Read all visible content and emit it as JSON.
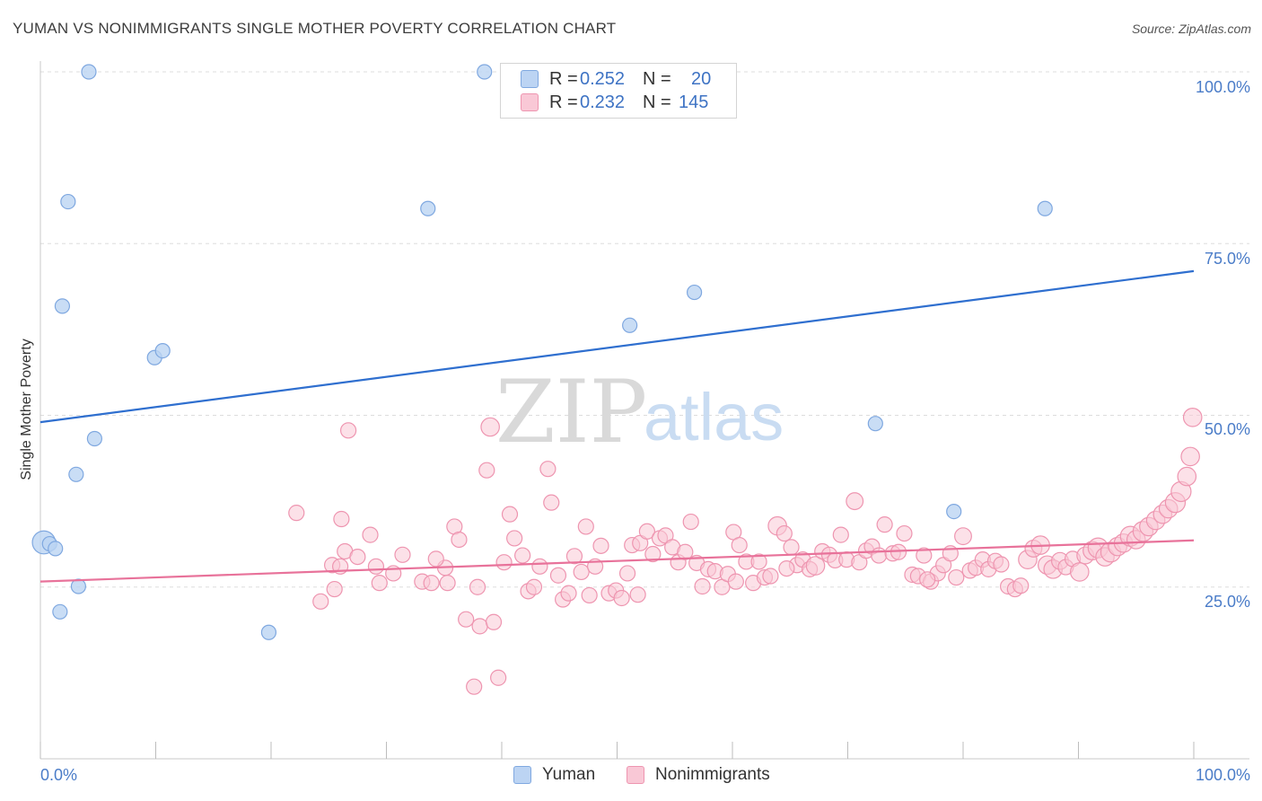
{
  "title": "YUMAN VS NONIMMIGRANTS SINGLE MOTHER POVERTY CORRELATION CHART",
  "source": "Source: ZipAtlas.com",
  "watermark": {
    "zip": "ZIP",
    "atlas": "atlas"
  },
  "legend": {
    "rows": [
      {
        "r_label": "R =",
        "r_value": "0.252",
        "n_label": "N =",
        "n_value": "20"
      },
      {
        "r_label": "R =",
        "r_value": "0.232",
        "n_label": "N =",
        "n_value": "145"
      }
    ]
  },
  "bottom_legend": {
    "series1": "Yuman",
    "series2": "Nonimmigrants"
  },
  "colors": {
    "yuman_fill": "#bcd4f3",
    "yuman_stroke": "#7fa8e0",
    "yuman_line": "#2f6fcf",
    "nonimm_fill": "#f9c8d6",
    "nonimm_stroke": "#ee95b0",
    "nonimm_line": "#e8729a",
    "tick_text": "#4a7cc8",
    "grid": "#dddddd"
  },
  "chart_data": {
    "type": "scatter",
    "title": "YUMAN VS NONIMMIGRANTS SINGLE MOTHER POVERTY CORRELATION CHART",
    "xlabel": "",
    "ylabel": "Single Mother Poverty",
    "xlim": [
      0,
      100
    ],
    "ylim": [
      0,
      102
    ],
    "x_ticks": [
      "0.0%",
      "100.0%"
    ],
    "y_ticks": [
      {
        "value": 25,
        "label": "25.0%"
      },
      {
        "value": 50,
        "label": "50.0%"
      },
      {
        "value": 75,
        "label": "75.0%"
      },
      {
        "value": 100,
        "label": "100.0%"
      }
    ],
    "grid": true,
    "legend_position": "top-center",
    "series": [
      {
        "name": "Yuman",
        "r": 0.252,
        "n": 20,
        "trend": {
          "x": [
            0,
            100
          ],
          "y": [
            49.0,
            71.0
          ]
        },
        "points": [
          [
            0.3,
            31.5,
            1.6
          ],
          [
            0.8,
            31.3,
            1
          ],
          [
            1.3,
            30.6,
            1
          ],
          [
            1.7,
            21.4,
            1
          ],
          [
            1.9,
            65.9,
            1
          ],
          [
            2.4,
            81.1,
            1
          ],
          [
            3.1,
            41.4,
            1
          ],
          [
            3.3,
            25.1,
            1
          ],
          [
            4.2,
            100.0,
            1
          ],
          [
            4.7,
            46.6,
            1
          ],
          [
            9.9,
            58.4,
            1
          ],
          [
            10.6,
            59.4,
            1
          ],
          [
            19.8,
            18.4,
            1
          ],
          [
            33.6,
            80.1,
            1
          ],
          [
            38.5,
            100.0,
            1
          ],
          [
            51.1,
            63.1,
            1
          ],
          [
            56.7,
            67.9,
            1
          ],
          [
            72.4,
            48.8,
            1
          ],
          [
            79.2,
            36.0,
            1
          ],
          [
            87.1,
            80.1,
            1
          ]
        ]
      },
      {
        "name": "Nonimmigrants",
        "r": 0.232,
        "n": 145,
        "trend": {
          "x": [
            0,
            100
          ],
          "y": [
            25.8,
            31.8
          ]
        },
        "points": [
          [
            22.2,
            35.8,
            1
          ],
          [
            24.3,
            22.9,
            1
          ],
          [
            25.3,
            28.2,
            1
          ],
          [
            25.5,
            24.7,
            1
          ],
          [
            26.1,
            34.9,
            1
          ],
          [
            26.4,
            30.2,
            1
          ],
          [
            26.7,
            47.8,
            1
          ],
          [
            27.5,
            29.4,
            1
          ],
          [
            28.6,
            32.6,
            1
          ],
          [
            29.1,
            28.0,
            1
          ],
          [
            29.4,
            25.6,
            1
          ],
          [
            30.6,
            27.0,
            1
          ],
          [
            31.4,
            29.7,
            1
          ],
          [
            33.1,
            25.8,
            1
          ],
          [
            33.9,
            25.6,
            1
          ],
          [
            35.1,
            27.8,
            1
          ],
          [
            35.3,
            25.6,
            1
          ],
          [
            35.9,
            33.8,
            1
          ],
          [
            36.3,
            31.9,
            1
          ],
          [
            36.9,
            20.3,
            1
          ],
          [
            37.6,
            10.5,
            1
          ],
          [
            37.9,
            25.0,
            1
          ],
          [
            38.1,
            19.3,
            1
          ],
          [
            38.7,
            42.0,
            1
          ],
          [
            39.0,
            48.3,
            1.2
          ],
          [
            39.3,
            19.9,
            1
          ],
          [
            39.7,
            11.8,
            1
          ],
          [
            40.2,
            28.6,
            1
          ],
          [
            40.7,
            35.6,
            1
          ],
          [
            41.1,
            32.1,
            1
          ],
          [
            41.8,
            29.6,
            1
          ],
          [
            42.3,
            24.4,
            1
          ],
          [
            42.8,
            25.0,
            1
          ],
          [
            43.3,
            28.0,
            1
          ],
          [
            44.0,
            42.2,
            1
          ],
          [
            44.3,
            37.3,
            1
          ],
          [
            44.9,
            26.7,
            1
          ],
          [
            45.3,
            23.2,
            1
          ],
          [
            45.8,
            24.1,
            1
          ],
          [
            46.3,
            29.5,
            1
          ],
          [
            46.9,
            27.2,
            1
          ],
          [
            47.6,
            23.8,
            1
          ],
          [
            48.1,
            28.0,
            1
          ],
          [
            48.6,
            31.0,
            1
          ],
          [
            49.3,
            24.1,
            1
          ],
          [
            49.9,
            24.5,
            1
          ],
          [
            50.4,
            23.4,
            1
          ],
          [
            50.9,
            27.0,
            1
          ],
          [
            51.3,
            31.1,
            1
          ],
          [
            52.0,
            31.4,
            1
          ],
          [
            52.6,
            33.1,
            1
          ],
          [
            53.1,
            29.8,
            1
          ],
          [
            53.7,
            32.1,
            1
          ],
          [
            54.2,
            32.5,
            1
          ],
          [
            54.8,
            30.8,
            1
          ],
          [
            55.3,
            28.6,
            1
          ],
          [
            55.9,
            30.1,
            1
          ],
          [
            56.4,
            34.5,
            1
          ],
          [
            56.9,
            28.5,
            1
          ],
          [
            57.4,
            25.1,
            1
          ],
          [
            57.9,
            27.6,
            1
          ],
          [
            58.5,
            27.3,
            1
          ],
          [
            59.1,
            25.0,
            1
          ],
          [
            59.6,
            26.9,
            1
          ],
          [
            60.1,
            33.0,
            1
          ],
          [
            60.6,
            31.1,
            1
          ],
          [
            61.2,
            28.7,
            1
          ],
          [
            61.8,
            25.6,
            1
          ],
          [
            62.3,
            28.7,
            1
          ],
          [
            62.8,
            26.4,
            1
          ],
          [
            63.3,
            26.6,
            1
          ],
          [
            63.9,
            33.9,
            1.2
          ],
          [
            64.5,
            32.8,
            1
          ],
          [
            65.1,
            30.8,
            1
          ],
          [
            65.6,
            28.2,
            1
          ],
          [
            66.1,
            29.0,
            1
          ],
          [
            66.7,
            27.6,
            1
          ],
          [
            67.2,
            28.1,
            1.2
          ],
          [
            67.8,
            30.2,
            1
          ],
          [
            68.4,
            29.7,
            1
          ],
          [
            68.9,
            28.9,
            1
          ],
          [
            69.4,
            32.6,
            1
          ],
          [
            69.9,
            29.0,
            1
          ],
          [
            70.6,
            37.5,
            1.1
          ],
          [
            71.0,
            28.6,
            1
          ],
          [
            71.6,
            30.3,
            1
          ],
          [
            72.1,
            30.9,
            1
          ],
          [
            72.7,
            29.6,
            1
          ],
          [
            73.2,
            34.1,
            1
          ],
          [
            73.9,
            29.9,
            1
          ],
          [
            74.4,
            30.1,
            1
          ],
          [
            74.9,
            32.8,
            1
          ],
          [
            75.6,
            26.8,
            1
          ],
          [
            76.1,
            26.6,
            1
          ],
          [
            76.6,
            29.6,
            1
          ],
          [
            77.2,
            25.8,
            1
          ],
          [
            77.8,
            27.0,
            1
          ],
          [
            78.3,
            28.2,
            1
          ],
          [
            78.9,
            29.9,
            1
          ],
          [
            79.4,
            26.4,
            1
          ],
          [
            80.0,
            32.4,
            1.1
          ],
          [
            80.6,
            27.4,
            1
          ],
          [
            81.1,
            27.8,
            1
          ],
          [
            81.7,
            29.0,
            1
          ],
          [
            82.2,
            27.6,
            1
          ],
          [
            82.8,
            28.8,
            1
          ],
          [
            83.3,
            28.3,
            1
          ],
          [
            83.9,
            25.1,
            1
          ],
          [
            84.5,
            24.7,
            1
          ],
          [
            85.0,
            25.2,
            1
          ],
          [
            85.6,
            29.0,
            1.2
          ],
          [
            86.1,
            30.6,
            1.1
          ],
          [
            86.7,
            31.1,
            1.2
          ],
          [
            87.3,
            28.2,
            1.2
          ],
          [
            87.8,
            27.6,
            1.2
          ],
          [
            88.4,
            28.8,
            1.1
          ],
          [
            88.9,
            27.9,
            1
          ],
          [
            89.5,
            29.1,
            1
          ],
          [
            90.1,
            27.2,
            1.2
          ],
          [
            90.6,
            29.6,
            1.1
          ],
          [
            91.2,
            30.3,
            1.2
          ],
          [
            91.7,
            30.7,
            1.3
          ],
          [
            92.3,
            29.4,
            1.2
          ],
          [
            92.8,
            30.1,
            1.3
          ],
          [
            93.4,
            30.9,
            1.2
          ],
          [
            93.9,
            31.4,
            1.2
          ],
          [
            94.5,
            32.4,
            1.3
          ],
          [
            95.0,
            31.9,
            1.2
          ],
          [
            95.6,
            33.1,
            1.3
          ],
          [
            96.1,
            33.8,
            1.2
          ],
          [
            96.7,
            34.7,
            1.2
          ],
          [
            97.3,
            35.6,
            1.2
          ],
          [
            97.8,
            36.4,
            1.2
          ],
          [
            98.4,
            37.3,
            1.3
          ],
          [
            98.9,
            38.9,
            1.3
          ],
          [
            99.4,
            41.1,
            1.2
          ],
          [
            99.7,
            44.0,
            1.2
          ],
          [
            99.9,
            49.7,
            1.2
          ],
          [
            26.0,
            28.0,
            1
          ],
          [
            34.3,
            29.1,
            1
          ],
          [
            47.3,
            33.8,
            1
          ],
          [
            51.8,
            23.9,
            1
          ],
          [
            60.3,
            25.8,
            1
          ],
          [
            64.7,
            27.7,
            1
          ],
          [
            76.9,
            26.1,
            1
          ]
        ]
      }
    ]
  }
}
